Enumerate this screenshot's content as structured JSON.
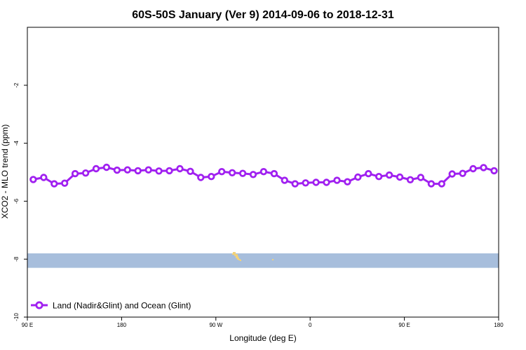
{
  "chart_data": {
    "type": "line",
    "title": "60S-50S January (Ver 9)   2014-09-06 to 2018-12-31",
    "xlabel": "Longitude (deg E)",
    "ylabel": "XCO2 - MLO trend (ppm)",
    "xlim": [
      90,
      450
    ],
    "ylim": [
      -10,
      0
    ],
    "x_ticks": [
      {
        "value": 90,
        "label": "90 E"
      },
      {
        "value": 162,
        "label": "180"
      },
      {
        "value": 234,
        "label": "90 W"
      },
      {
        "value": 306,
        "label": "0"
      },
      {
        "value": 378,
        "label": "90 E"
      },
      {
        "value": 450,
        "label": "180"
      }
    ],
    "y_ticks": [
      {
        "value": -2,
        "label": "-2"
      },
      {
        "value": -4,
        "label": "-4"
      },
      {
        "value": -6,
        "label": "-6"
      },
      {
        "value": -8,
        "label": "-8"
      },
      {
        "value": -10,
        "label": "-10"
      }
    ],
    "legend_position": "bottom-left",
    "map_band": {
      "y_range": [
        -8.3,
        -7.8
      ],
      "ocean_color": "#a7bedc",
      "land_color": "#f2d27a"
    },
    "series": [
      {
        "name": "Land (Nadir&Glint) and Ocean (Glint)",
        "color": "#a020f0",
        "x": [
          94.5,
          102.5,
          110.5,
          118.5,
          126.5,
          134.5,
          142.5,
          150.5,
          158.5,
          166.5,
          174.5,
          182.5,
          190.5,
          198.5,
          206.5,
          214.5,
          222.5,
          230.5,
          238.5,
          246.5,
          254.5,
          262.5,
          270.5,
          278.5,
          286.5,
          294.5,
          302.5,
          310.5,
          318.5,
          326.5,
          334.5,
          342.5,
          350.5,
          358.5,
          366.5,
          374.5,
          382.5,
          390.5,
          398.5,
          406.5,
          414.5,
          422.5,
          430.5,
          438.5,
          446.5
        ],
        "values": [
          -5.25,
          -5.18,
          -5.4,
          -5.38,
          -5.05,
          -5.03,
          -4.88,
          -4.83,
          -4.93,
          -4.92,
          -4.95,
          -4.92,
          -4.96,
          -4.95,
          -4.88,
          -4.97,
          -5.18,
          -5.15,
          -4.98,
          -5.02,
          -5.04,
          -5.08,
          -4.98,
          -5.05,
          -5.28,
          -5.4,
          -5.37,
          -5.35,
          -5.35,
          -5.28,
          -5.33,
          -5.17,
          -5.05,
          -5.15,
          -5.1,
          -5.17,
          -5.26,
          -5.18,
          -5.4,
          -5.4,
          -5.06,
          -5.04,
          -4.88,
          -4.84,
          -4.95
        ]
      }
    ]
  }
}
